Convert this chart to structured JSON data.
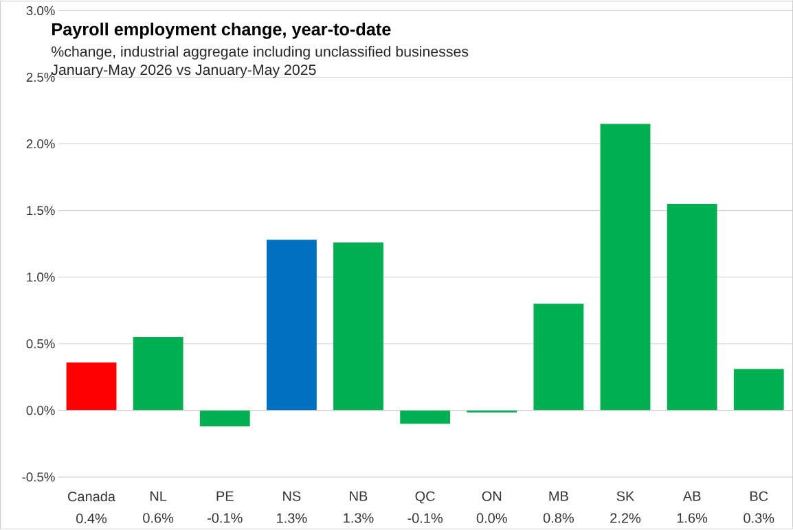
{
  "chart_data": {
    "type": "bar",
    "title": "Payroll employment change, year-to-date",
    "subtitle": "%change, industrial aggregate including unclassified businesses",
    "annotations": [
      "January-May 2026 vs January-May 2025"
    ],
    "categories": [
      "Canada",
      "NL",
      "PE",
      "NS",
      "NB",
      "QC",
      "ON",
      "MB",
      "SK",
      "AB",
      "BC"
    ],
    "values": [
      0.36,
      0.55,
      -0.12,
      1.28,
      1.26,
      -0.1,
      -0.015,
      0.8,
      2.15,
      1.55,
      0.31
    ],
    "value_labels": [
      "0.4%",
      "0.6%",
      "-0.1%",
      "1.3%",
      "1.3%",
      "-0.1%",
      "0.0%",
      "0.8%",
      "2.2%",
      "1.6%",
      "0.3%"
    ],
    "colors": [
      "#ff0000",
      "#00b050",
      "#00b050",
      "#0070c0",
      "#00b050",
      "#00b050",
      "#00b050",
      "#00b050",
      "#00b050",
      "#00b050",
      "#00b050"
    ],
    "ylim": [
      -0.5,
      3.0
    ],
    "yticks": [
      {
        "value": -0.5,
        "label": "-0.5%"
      },
      {
        "value": 0,
        "label": "0.0%"
      },
      {
        "value": 0.5,
        "label": "0.5%"
      },
      {
        "value": 1.0,
        "label": "1.0%"
      },
      {
        "value": 1.5,
        "label": "1.5%"
      },
      {
        "value": 2.0,
        "label": "2.0%"
      },
      {
        "value": 2.5,
        "label": "2.5%"
      },
      {
        "value": 3.0,
        "label": "3.0%"
      }
    ],
    "grid": "y"
  }
}
